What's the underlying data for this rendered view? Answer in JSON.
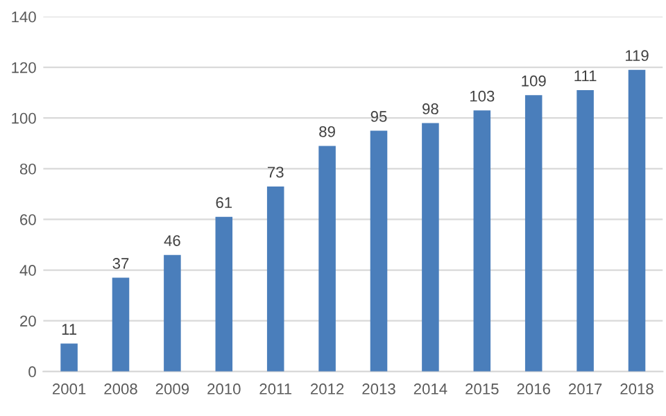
{
  "chart_data": {
    "type": "bar",
    "categories": [
      "2001",
      "2008",
      "2009",
      "2010",
      "2011",
      "2012",
      "2013",
      "2014",
      "2015",
      "2016",
      "2017",
      "2018"
    ],
    "values": [
      11,
      37,
      46,
      61,
      73,
      89,
      95,
      98,
      103,
      109,
      111,
      119
    ],
    "color": "#4a7ebb",
    "ylim": [
      0,
      140
    ],
    "yticks": [
      0,
      20,
      40,
      60,
      80,
      100,
      120,
      140
    ],
    "grid": "y",
    "data_labels": true
  }
}
